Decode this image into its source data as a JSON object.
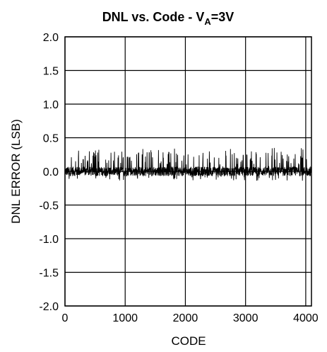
{
  "chart_data": {
    "type": "line",
    "title": {
      "main": "DNL vs. Code - V",
      "subscript": "A",
      "suffix": "=3V"
    },
    "xlabel": "CODE",
    "ylabel": "DNL ERROR (LSB)",
    "xlim": [
      0,
      4095
    ],
    "ylim": [
      -2.0,
      2.0
    ],
    "x_ticks": [
      0,
      1000,
      2000,
      3000,
      4000
    ],
    "x_tick_labels": [
      "0",
      "1000",
      "2000",
      "3000",
      "4000"
    ],
    "y_ticks": [
      -2.0,
      -1.5,
      -1.0,
      -0.5,
      0.0,
      0.5,
      1.0,
      1.5,
      2.0
    ],
    "y_tick_labels": [
      "-2.0",
      "-1.5",
      "-1.0",
      "-0.5",
      "0.0",
      "0.5",
      "1.0",
      "1.5",
      "2.0"
    ],
    "grid": true,
    "series": [
      {
        "color": "#000000",
        "description_of_shape": "noise centered near 0 LSB with spikes",
        "baseline": 0.0,
        "noise_band": [
          -0.07,
          0.07
        ],
        "positive_peak_typical": 0.3,
        "positive_peak_max": 0.36,
        "negative_peak_min": -0.14,
        "x_range": [
          1,
          4094
        ]
      }
    ]
  }
}
